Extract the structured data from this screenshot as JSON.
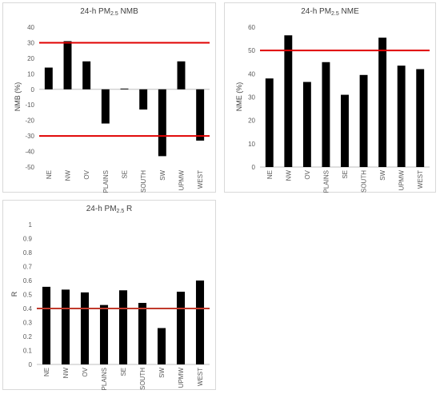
{
  "chart_data": [
    {
      "type": "bar",
      "title": {
        "pre": "24-h PM",
        "sub": "2.5",
        "post": " NMB"
      },
      "ylabel": "NMB (%)",
      "categories": [
        "NE",
        "NW",
        "OV",
        "PLAINS",
        "SE",
        "SOUTH",
        "SW",
        "UPMW",
        "WEST"
      ],
      "values": [
        14,
        31,
        18,
        -22,
        0.5,
        -13,
        -43,
        18,
        -33
      ],
      "ylim": [
        -50,
        40
      ],
      "yticks": [
        -50,
        -40,
        -30,
        -20,
        -10,
        0,
        10,
        20,
        30,
        40
      ],
      "reference_lines": [
        30,
        -30
      ],
      "bar_color": "#000000",
      "line_color": "#e00000"
    },
    {
      "type": "bar",
      "title": {
        "pre": "24-h PM",
        "sub": "2.5",
        "post": " NME"
      },
      "ylabel": "NME (%)",
      "categories": [
        "NE",
        "NW",
        "OV",
        "PLAINS",
        "SE",
        "SOUTH",
        "SW",
        "UPMW",
        "WEST"
      ],
      "values": [
        38,
        56.5,
        36.5,
        45,
        31,
        39.5,
        55.5,
        43.5,
        42
      ],
      "ylim": [
        0,
        60
      ],
      "yticks": [
        0,
        10,
        20,
        30,
        40,
        50,
        60
      ],
      "reference_lines": [
        50
      ],
      "bar_color": "#000000",
      "line_color": "#e00000"
    },
    {
      "type": "bar",
      "title": {
        "pre": "24-h PM",
        "sub": "2.5",
        "post": " R"
      },
      "ylabel": "R",
      "categories": [
        "NE",
        "NW",
        "OV",
        "PLAINS",
        "SE",
        "SOUTH",
        "SW",
        "UPMW",
        "WEST"
      ],
      "values": [
        0.555,
        0.535,
        0.515,
        0.425,
        0.53,
        0.44,
        0.26,
        0.52,
        0.6
      ],
      "ylim": [
        0,
        1
      ],
      "yticks": [
        0,
        0.1,
        0.2,
        0.3,
        0.4,
        0.5,
        0.6,
        0.7,
        0.8,
        0.9,
        1
      ],
      "reference_lines": [
        0.4
      ],
      "bar_color": "#000000",
      "line_color": "#c0392b"
    }
  ]
}
